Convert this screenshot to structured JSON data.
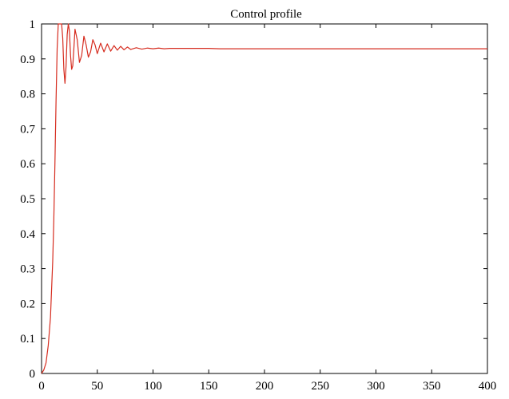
{
  "chart_data": {
    "type": "line",
    "title": "Control profile",
    "xlabel": "",
    "ylabel": "",
    "xlim": [
      0,
      400
    ],
    "ylim": [
      0,
      1
    ],
    "grid": false,
    "x_ticks": [
      0,
      50,
      100,
      150,
      200,
      250,
      300,
      350,
      400
    ],
    "y_ticks": [
      0,
      0.1,
      0.2,
      0.3,
      0.4,
      0.5,
      0.6,
      0.7,
      0.8,
      0.9,
      1
    ],
    "x_tick_labels": [
      "0",
      "50",
      "100",
      "150",
      "200",
      "250",
      "300",
      "350",
      "400"
    ],
    "y_tick_labels": [
      "0",
      "0.1",
      "0.2",
      "0.3",
      "0.4",
      "0.5",
      "0.6",
      "0.7",
      "0.8",
      "0.9",
      "1"
    ],
    "series": [
      {
        "color": "#d62d20",
        "x": [
          0,
          2,
          4,
          6,
          8,
          10,
          11,
          12,
          13,
          14,
          15,
          16,
          17,
          18,
          19,
          20,
          21,
          22,
          23,
          24,
          25,
          26,
          27,
          28,
          29,
          30,
          32,
          34,
          36,
          38,
          40,
          42,
          44,
          46,
          48,
          50,
          53,
          56,
          59,
          62,
          65,
          68,
          71,
          74,
          77,
          80,
          85,
          90,
          95,
          100,
          105,
          110,
          115,
          120,
          130,
          140,
          150,
          160,
          170,
          200,
          250,
          300,
          350,
          400
        ],
        "y": [
          0,
          0.01,
          0.03,
          0.08,
          0.16,
          0.32,
          0.44,
          0.6,
          0.78,
          0.93,
          1.0,
          1.0,
          1.0,
          1.0,
          0.96,
          0.87,
          0.83,
          0.88,
          0.97,
          1.0,
          0.98,
          0.91,
          0.87,
          0.88,
          0.93,
          0.985,
          0.955,
          0.89,
          0.91,
          0.965,
          0.94,
          0.905,
          0.92,
          0.955,
          0.94,
          0.915,
          0.945,
          0.92,
          0.943,
          0.922,
          0.938,
          0.925,
          0.936,
          0.926,
          0.934,
          0.927,
          0.932,
          0.928,
          0.931,
          0.929,
          0.931,
          0.929,
          0.93,
          0.93,
          0.93,
          0.93,
          0.93,
          0.929,
          0.929,
          0.929,
          0.929,
          0.929,
          0.929,
          0.929
        ]
      }
    ]
  }
}
